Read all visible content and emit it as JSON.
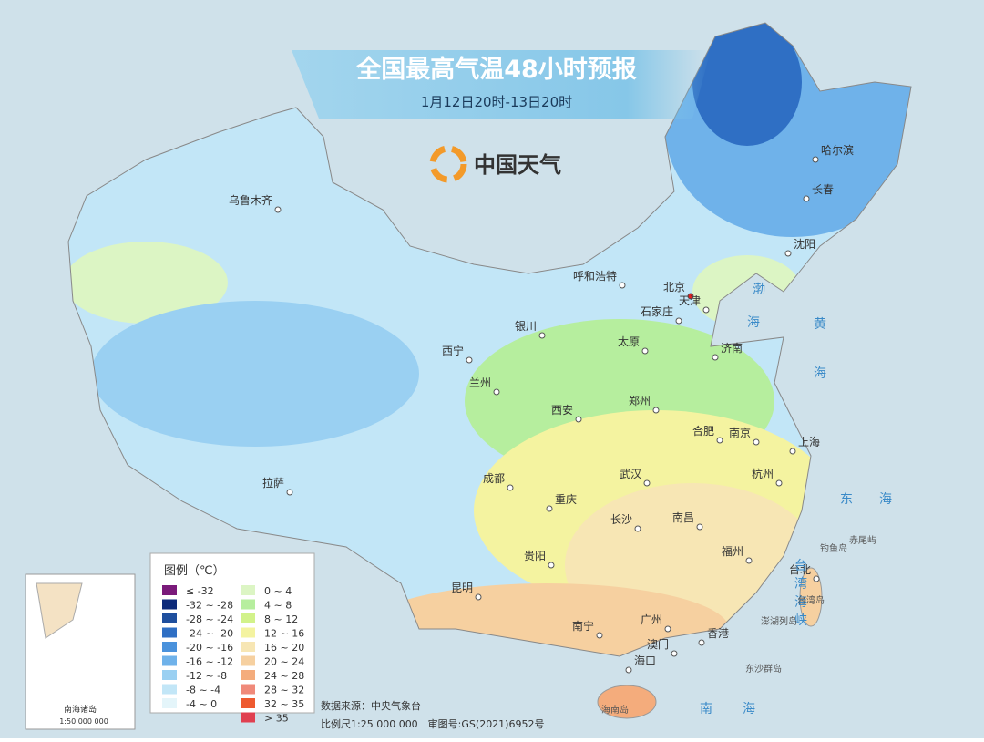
{
  "header": {
    "title": "全国最高气温48小时预报",
    "subtitle": "1月12日20时-13日20时",
    "brand": "中国天气"
  },
  "cities": [
    "乌鲁木齐",
    "哈尔滨",
    "长春",
    "沈阳",
    "呼和浩特",
    "北京",
    "天津",
    "石家庄",
    "银川",
    "太原",
    "济南",
    "西宁",
    "兰州",
    "郑州",
    "西安",
    "合肥",
    "南京",
    "上海",
    "拉萨",
    "成都",
    "武汉",
    "杭州",
    "重庆",
    "长沙",
    "南昌",
    "贵阳",
    "福州",
    "台北",
    "昆明",
    "广州",
    "南宁",
    "香港",
    "澳门",
    "海口"
  ],
  "seas": [
    "渤",
    "海",
    "黄",
    "海",
    "东",
    "海",
    "南",
    "海",
    "台",
    "湾",
    "海",
    "峡"
  ],
  "islands": [
    "台湾岛",
    "澎湖列岛",
    "钓鱼岛",
    "赤尾屿",
    "东沙群岛",
    "海南岛"
  ],
  "legend": {
    "title": "图例（℃）",
    "items": [
      {
        "label": "≤ -32",
        "color": "#7a1a7a"
      },
      {
        "label": "-32 ~ -28",
        "color": "#0d2a7a"
      },
      {
        "label": "-28 ~ -24",
        "color": "#1f4f9e"
      },
      {
        "label": "-24 ~ -20",
        "color": "#2f6fc4"
      },
      {
        "label": "-20 ~ -16",
        "color": "#4a92dc"
      },
      {
        "label": "-16 ~ -12",
        "color": "#6fb2ea"
      },
      {
        "label": "-12 ~ -8",
        "color": "#9ad0f2"
      },
      {
        "label": "-8 ~ -4",
        "color": "#c2e6f7"
      },
      {
        "label": "-4 ~ 0",
        "color": "#e4f5fa"
      },
      {
        "label": "0 ~ 4",
        "color": "#dcf5c4"
      },
      {
        "label": "4 ~ 8",
        "color": "#b6ee9e"
      },
      {
        "label": "8 ~ 12",
        "color": "#d2f28a"
      },
      {
        "label": "12 ~ 16",
        "color": "#f4f3a0"
      },
      {
        "label": "16 ~ 20",
        "color": "#f7e6b4"
      },
      {
        "label": "20 ~ 24",
        "color": "#f6d0a0"
      },
      {
        "label": "24 ~ 28",
        "color": "#f4ac7c"
      },
      {
        "label": "28 ~ 32",
        "color": "#f08a7a"
      },
      {
        "label": "32 ~ 35",
        "color": "#ee5a30"
      },
      {
        "label": "> 35",
        "color": "#e04050"
      }
    ]
  },
  "footer": {
    "source": "数据来源：中央气象台",
    "scale": "比例尺1:25 000 000　审图号:GS(2021)6952号"
  },
  "inset": {
    "title": "南海诸岛",
    "scale": "1:50 000 000"
  }
}
